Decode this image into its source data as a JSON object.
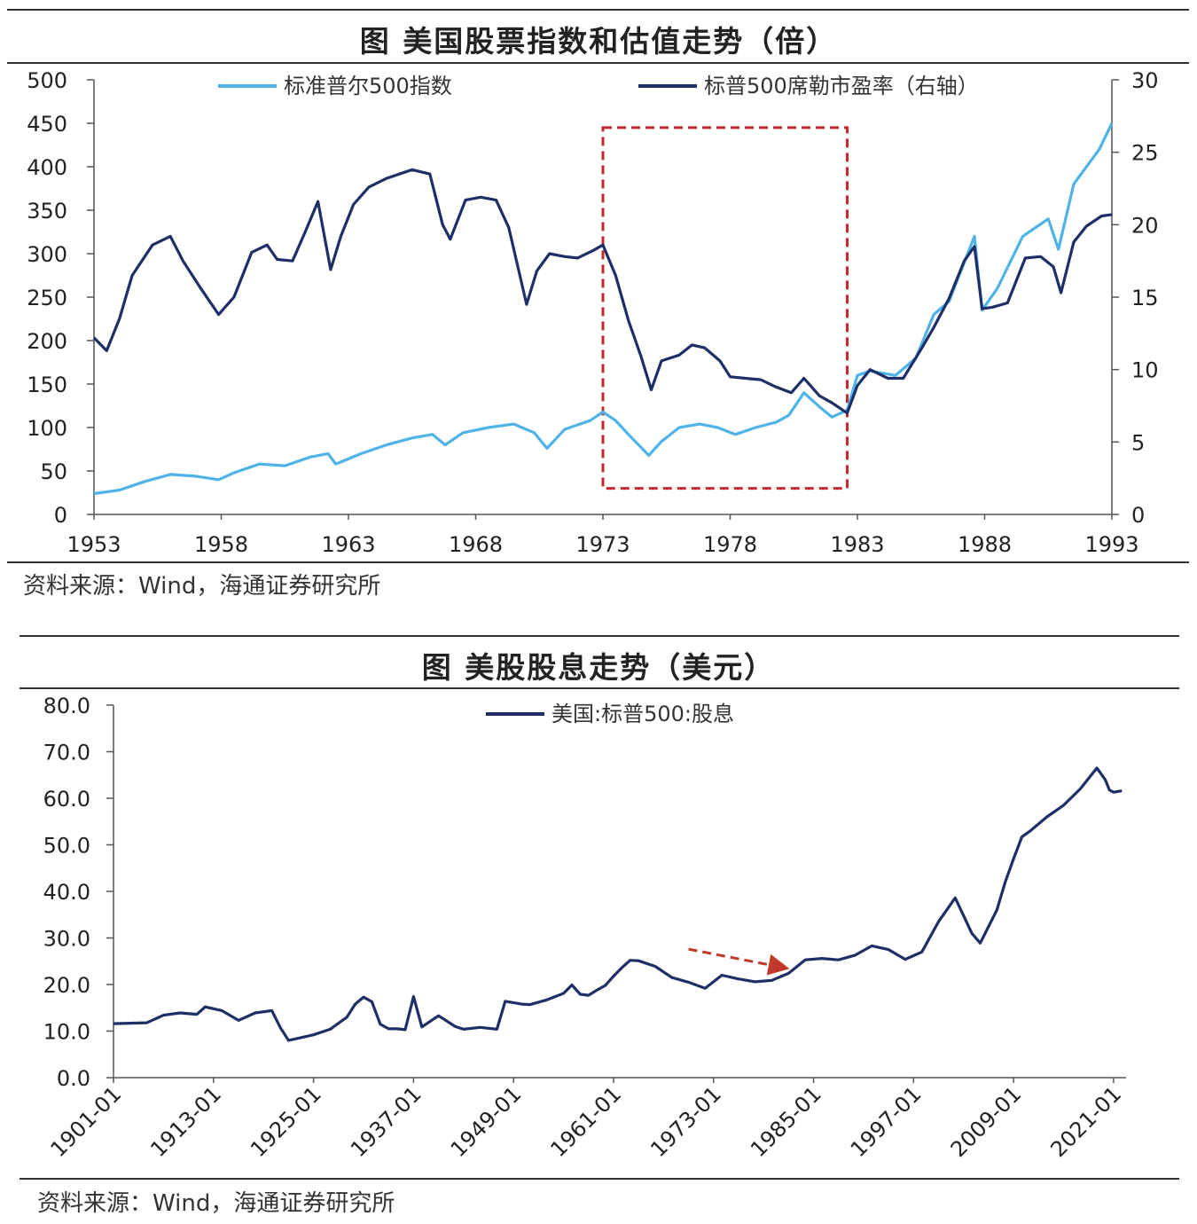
{
  "chart_data": [
    {
      "type": "line",
      "title": "图  美国股票指数和估值走势（倍）",
      "source": "资料来源：Wind，海通证券研究所",
      "x_ticks": [
        "1953",
        "1958",
        "1963",
        "1968",
        "1973",
        "1978",
        "1983",
        "1988",
        "1993"
      ],
      "xlim": [
        1953,
        1993
      ],
      "y_left_ticks": [
        "500",
        "450",
        "400",
        "350",
        "300",
        "250",
        "200",
        "150",
        "100",
        "50",
        "0"
      ],
      "ylim_left": [
        0,
        500
      ],
      "y_right_ticks": [
        "30",
        "25",
        "20",
        "15",
        "10",
        "5",
        "0"
      ],
      "ylim_right": [
        0,
        30
      ],
      "highlight_box": {
        "x_from": 1973.0,
        "x_to": 1982.6,
        "y_from": 30,
        "y_to": 445
      },
      "series": [
        {
          "name": "标准普尔500指数",
          "axis": "left",
          "color": "#4fb3e8",
          "x": [
            1953.0,
            1954.0,
            1955.0,
            1956.0,
            1957.0,
            1957.9,
            1958.5,
            1959.5,
            1960.5,
            1961.5,
            1962.2,
            1962.5,
            1963.5,
            1964.5,
            1965.5,
            1966.3,
            1966.8,
            1967.5,
            1968.5,
            1969.5,
            1970.3,
            1970.8,
            1971.5,
            1972.5,
            1973.0,
            1973.5,
            1974.0,
            1974.8,
            1975.3,
            1976.0,
            1976.8,
            1977.5,
            1978.2,
            1979.0,
            1979.8,
            1980.3,
            1980.9,
            1981.5,
            1982.0,
            1982.6,
            1983.0,
            1983.5,
            1984.5,
            1985.3,
            1986.0,
            1986.6,
            1987.6,
            1987.9,
            1988.5,
            1989.5,
            1990.5,
            1990.9,
            1991.5,
            1992.5,
            1993.0
          ],
          "values": [
            24,
            28,
            38,
            46,
            44,
            40,
            48,
            58,
            56,
            66,
            70,
            58,
            70,
            80,
            88,
            92,
            80,
            94,
            100,
            104,
            94,
            76,
            98,
            108,
            118,
            108,
            92,
            68,
            84,
            100,
            104,
            100,
            92,
            100,
            106,
            114,
            140,
            124,
            112,
            120,
            160,
            165,
            160,
            180,
            230,
            245,
            320,
            235,
            260,
            320,
            340,
            305,
            380,
            420,
            450
          ]
        },
        {
          "name": "标普500席勒市盈率（右轴）",
          "axis": "right",
          "color": "#1d2f66",
          "x": [
            1953.0,
            1953.5,
            1954.0,
            1954.5,
            1955.3,
            1956.0,
            1956.5,
            1957.2,
            1957.9,
            1958.5,
            1959.2,
            1959.8,
            1960.2,
            1960.8,
            1961.3,
            1961.8,
            1962.3,
            1962.7,
            1963.2,
            1963.8,
            1964.5,
            1965.5,
            1966.2,
            1966.7,
            1967.0,
            1967.6,
            1968.2,
            1968.8,
            1969.3,
            1970.0,
            1970.4,
            1970.9,
            1971.5,
            1972.0,
            1972.6,
            1973.0,
            1973.5,
            1974.0,
            1974.5,
            1974.9,
            1975.3,
            1976.0,
            1976.5,
            1977.0,
            1977.6,
            1978.0,
            1978.6,
            1979.2,
            1979.8,
            1980.4,
            1980.9,
            1981.5,
            1982.0,
            1982.6,
            1983.0,
            1983.5,
            1984.2,
            1984.8,
            1985.5,
            1986.0,
            1986.6,
            1987.2,
            1987.6,
            1987.9,
            1988.3,
            1988.9,
            1989.6,
            1990.2,
            1990.7,
            1991.0,
            1991.5,
            1992.0,
            1992.6,
            1993.0
          ],
          "values": [
            12.2,
            11.3,
            13.5,
            16.5,
            18.6,
            19.2,
            17.5,
            15.6,
            13.8,
            15.0,
            18.1,
            18.6,
            17.6,
            17.5,
            19.5,
            21.6,
            16.9,
            19.2,
            21.4,
            22.6,
            23.2,
            23.8,
            23.5,
            20.0,
            19.0,
            21.7,
            21.9,
            21.7,
            19.8,
            14.5,
            16.8,
            18.0,
            17.8,
            17.7,
            18.2,
            18.6,
            16.5,
            13.4,
            10.9,
            8.6,
            10.6,
            11.0,
            11.7,
            11.5,
            10.6,
            9.5,
            9.4,
            9.3,
            8.8,
            8.4,
            9.4,
            8.2,
            7.7,
            7.0,
            8.9,
            10.0,
            9.4,
            9.4,
            11.4,
            12.9,
            14.9,
            17.5,
            18.5,
            14.2,
            14.3,
            14.6,
            17.7,
            17.8,
            17.1,
            15.3,
            18.8,
            19.9,
            20.6,
            20.7
          ]
        }
      ]
    },
    {
      "type": "line",
      "title": "图  美股股息走势（美元）",
      "source": "资料来源：Wind，海通证券研究所",
      "x_ticks": [
        "1901-01",
        "1913-01",
        "1925-01",
        "1937-01",
        "1949-01",
        "1961-01",
        "1973-01",
        "1985-01",
        "1997-01",
        "2009-01",
        "2021-01"
      ],
      "xlim": [
        1901.0,
        2022.5
      ],
      "y_ticks": [
        "80.0",
        "70.0",
        "60.0",
        "50.0",
        "40.0",
        "30.0",
        "20.0",
        "10.0",
        "0.0"
      ],
      "ylim": [
        0,
        80
      ],
      "arrow_annotation": {
        "from": [
          1970.0,
          27.6
        ],
        "to": [
          1981.5,
          23.6
        ],
        "color": "#c0392b"
      },
      "series": [
        {
          "name": "美国:标普500:股息",
          "color": "#1d2f66",
          "x": [
            1901,
            1905,
            1907,
            1909,
            1911,
            1912,
            1914,
            1916,
            1918,
            1920,
            1921,
            1922,
            1923,
            1925,
            1927,
            1929,
            1930,
            1931,
            1932,
            1933,
            1934,
            1935,
            1936,
            1937,
            1938,
            1940,
            1942,
            1943,
            1945,
            1947,
            1948,
            1950,
            1951,
            1953,
            1955,
            1956,
            1957,
            1958,
            1959,
            1960,
            1961,
            1962,
            1963,
            1964,
            1966,
            1968,
            1970,
            1972,
            1974,
            1976,
            1978,
            1980,
            1982,
            1984,
            1986,
            1988,
            1990,
            1992,
            1994,
            1996,
            1998,
            2000,
            2002,
            2004,
            2005,
            2007,
            2008,
            2009,
            2010,
            2011,
            2013,
            2015,
            2017,
            2019,
            2020,
            2020.5,
            2021,
            2022
          ],
          "values": [
            11.6,
            11.8,
            13.4,
            13.9,
            13.6,
            15.2,
            14.4,
            12.3,
            13.9,
            14.4,
            10.8,
            8.0,
            8.4,
            9.2,
            10.4,
            13.0,
            15.8,
            17.3,
            16.3,
            11.5,
            10.5,
            10.5,
            10.3,
            17.4,
            10.9,
            13.3,
            11.0,
            10.4,
            10.8,
            10.4,
            16.4,
            15.8,
            15.7,
            16.7,
            18.1,
            19.9,
            17.9,
            17.7,
            18.8,
            19.8,
            21.8,
            23.6,
            25.2,
            25.1,
            23.9,
            21.5,
            20.5,
            19.2,
            22.0,
            21.2,
            20.6,
            20.9,
            22.4,
            25.3,
            25.6,
            25.3,
            26.3,
            28.3,
            27.5,
            25.4,
            27.0,
            33.5,
            38.6,
            31.0,
            28.9,
            36.0,
            42.0,
            47.0,
            51.7,
            53.0,
            56.0,
            58.5,
            62.0,
            66.5,
            64.0,
            61.8,
            61.3,
            61.6
          ]
        }
      ]
    }
  ]
}
